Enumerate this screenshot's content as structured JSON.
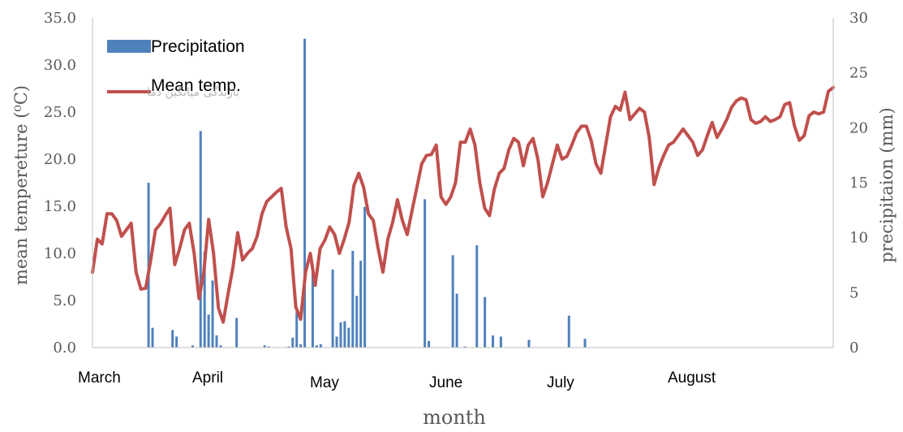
{
  "chart_data": {
    "type": "bar+line",
    "xlabel": "month",
    "ylabel_left": "mean tempereture (⁰C)",
    "ylabel_right": "precipitaion (mm)",
    "ylim_left": [
      0,
      35
    ],
    "ylim_right": [
      0,
      30
    ],
    "left_ticks": [
      "0.0",
      "5.0",
      "10.0",
      "15.0",
      "20.0",
      "25.0",
      "30.0",
      "35.0"
    ],
    "right_ticks": [
      "0",
      "5",
      "10",
      "15",
      "20",
      "25",
      "30"
    ],
    "month_labels": [
      "March",
      "April",
      "May",
      "June",
      "July",
      "August"
    ],
    "legend_overlay_text": "بارندگی میانگین دما",
    "series": [
      {
        "name": "Precipitation",
        "type": "bar",
        "axis": "right",
        "color": "#4f81bd",
        "days": [
          14,
          15,
          20,
          21,
          25,
          27,
          28,
          29,
          30,
          31,
          32,
          36,
          43,
          44,
          49,
          50,
          51,
          52,
          53,
          55,
          56,
          57,
          60,
          61,
          62,
          63,
          64,
          65,
          66,
          67,
          68,
          83,
          84,
          90,
          91,
          93,
          96,
          98,
          100,
          102,
          109,
          119,
          123
        ],
        "values": [
          15.0,
          1.8,
          1.6,
          1.0,
          0.2,
          19.7,
          8.7,
          3.0,
          6.1,
          1.1,
          0.2,
          2.7,
          0.2,
          0.1,
          0.1,
          0.9,
          3.2,
          0.3,
          28.1,
          7.3,
          0.2,
          0.3,
          7.1,
          1.0,
          2.3,
          2.4,
          1.8,
          8.8,
          4.7,
          7.9,
          12.8,
          13.5,
          0.6,
          8.4,
          4.9,
          0.1,
          9.3,
          4.6,
          1.1,
          1.0,
          0.7,
          2.9,
          0.8
        ]
      },
      {
        "name": "Mean temp.",
        "type": "line",
        "axis": "left",
        "color": "#c0504d",
        "values": [
          8.0,
          11.5,
          11.0,
          14.2,
          14.2,
          13.5,
          11.8,
          12.5,
          13.2,
          8.0,
          6.2,
          6.3,
          9.2,
          12.5,
          13.1,
          14.0,
          14.8,
          8.8,
          10.5,
          12.5,
          13.2,
          10.0,
          5.2,
          8.0,
          13.6,
          10.0,
          4.2,
          2.7,
          5.7,
          8.5,
          12.2,
          9.3,
          10.0,
          10.5,
          11.8,
          14.2,
          15.5,
          16.0,
          16.5,
          16.9,
          12.8,
          10.5,
          4.3,
          3.0,
          8.0,
          10.0,
          6.6,
          10.5,
          11.4,
          12.8,
          12.0,
          10.0,
          11.5,
          13.3,
          17.2,
          18.5,
          17.0,
          14.2,
          13.5,
          10.5,
          8.0,
          11.5,
          13.3,
          15.7,
          13.5,
          12.0,
          14.5,
          17.0,
          19.5,
          20.4,
          20.5,
          21.5,
          16.0,
          15.2,
          16.0,
          17.5,
          21.8,
          21.8,
          23.2,
          21.5,
          17.5,
          14.8,
          14.0,
          16.8,
          18.5,
          19.0,
          21.0,
          22.2,
          21.8,
          19.3,
          21.5,
          22.2,
          20.0,
          16.0,
          17.5,
          19.5,
          21.5,
          20.0,
          20.3,
          21.5,
          22.8,
          23.5,
          23.5,
          22.0,
          19.5,
          18.5,
          21.5,
          24.5,
          25.6,
          25.2,
          27.1,
          24.2,
          24.8,
          25.4,
          25.0,
          22.3,
          17.3,
          19.1,
          20.4,
          21.5,
          21.8,
          22.5,
          23.2,
          22.5,
          21.8,
          20.4,
          21.0,
          22.5,
          23.9,
          22.3,
          23.2,
          24.2,
          25.5,
          26.2,
          26.5,
          26.3,
          24.2,
          23.8,
          24.0,
          24.5,
          24.0,
          24.2,
          24.5,
          25.8,
          26.0,
          23.5,
          22.0,
          22.5,
          24.6,
          25.0,
          24.8,
          25.0,
          27.2,
          27.6
        ]
      }
    ]
  }
}
